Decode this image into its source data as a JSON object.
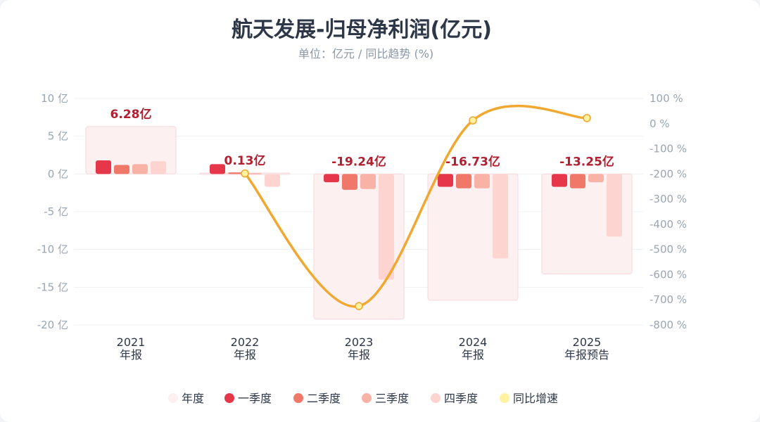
{
  "title": "航天发展-归母净利润(亿元)",
  "subtitle": "单位：亿元 / 同比趋势 (%)",
  "colors": {
    "annual": "#fdf0f1",
    "q1": "#e5364a",
    "q2": "#f07868",
    "q3": "#f8b2a6",
    "q4": "#fdd4d0",
    "yoy": "#f0a830",
    "yoy_marker_fill": "#fff2a0",
    "total_label": "#b02030"
  },
  "chart_data": {
    "type": "bar",
    "categories": [
      {
        "year": "2021",
        "sub": "年报"
      },
      {
        "year": "2022",
        "sub": "年报"
      },
      {
        "year": "2023",
        "sub": "年报"
      },
      {
        "year": "2024",
        "sub": "年报"
      },
      {
        "year": "2025",
        "sub": "年报预告"
      }
    ],
    "annual_labels": [
      "6.28亿",
      "0.13亿",
      "-19.24亿",
      "-16.73亿",
      "-13.25亿"
    ],
    "annual_values": [
      6.28,
      0.13,
      -19.24,
      -16.73,
      -13.25
    ],
    "series": [
      {
        "name": "一季度",
        "key": "q1",
        "values": [
          1.8,
          1.3,
          -1.1,
          -1.7,
          -1.7
        ]
      },
      {
        "name": "二季度",
        "key": "q2",
        "values": [
          1.2,
          0.2,
          -2.1,
          -1.9,
          -1.9
        ]
      },
      {
        "name": "三季度",
        "key": "q3",
        "values": [
          1.3,
          0.1,
          -2.0,
          -1.9,
          -1.1
        ]
      },
      {
        "name": "四季度",
        "key": "q4",
        "values": [
          1.7,
          -1.7,
          -14.0,
          -11.2,
          -8.3
        ]
      }
    ],
    "yoy": {
      "name": "同比增速",
      "values": [
        null,
        -198,
        -725,
        13,
        22
      ]
    },
    "left_axis": {
      "min": -20,
      "max": 10,
      "ticks": [
        "10 亿",
        "5 亿",
        "0 亿",
        "-5 亿",
        "-10 亿",
        "-15 亿",
        "-20 亿"
      ]
    },
    "right_axis": {
      "min": -800,
      "max": 100,
      "ticks": [
        "100 %",
        "0 %",
        "-100 %",
        "-200 %",
        "-300 %",
        "-400 %",
        "-500 %",
        "-600 %",
        "-700 %",
        "-800 %"
      ]
    },
    "legend": [
      "年度",
      "一季度",
      "二季度",
      "三季度",
      "四季度",
      "同比增速"
    ],
    "legend_position": "bottom",
    "grid": true
  }
}
